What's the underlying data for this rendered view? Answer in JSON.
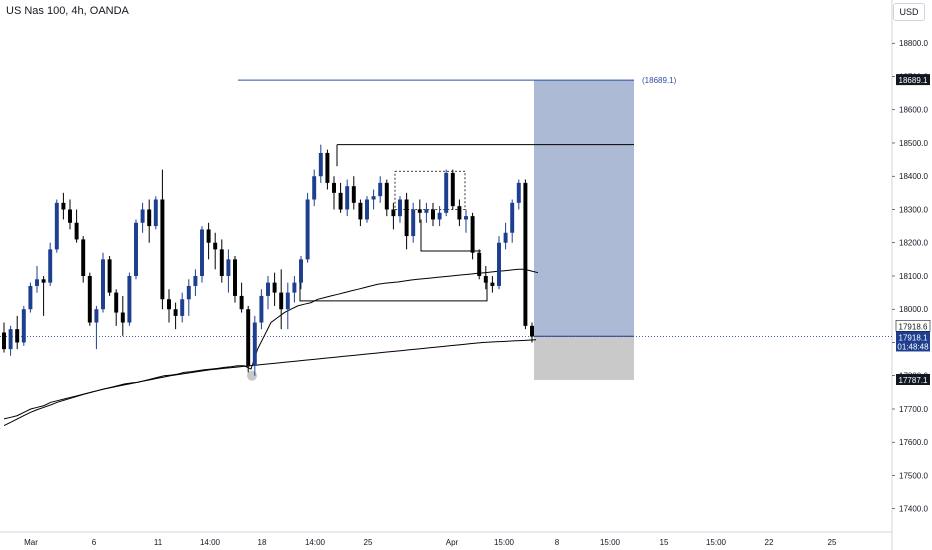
{
  "header": {
    "title": "US Nas 100, 4h, OANDA",
    "currency": "USD"
  },
  "colors": {
    "bull": "#1e3f8f",
    "bear": "#000000",
    "line": "#000000",
    "target_zone": "#a9b6d3",
    "stop_zone": "#c9c9c9",
    "target_line": "#2a4ea3",
    "axis_text": "#131722",
    "tag_bg": "#131722",
    "tag_text": "#ffffff"
  },
  "chart_data": {
    "type": "candlestick",
    "title": "US Nas 100, 4h, OANDA",
    "ylim": [
      17330,
      18930
    ],
    "y_ticks": [
      17400,
      17500,
      17600,
      17700,
      17800,
      17900,
      18000,
      18100,
      18200,
      18300,
      18400,
      18500,
      18600,
      18700,
      18800
    ],
    "y_tick_labels": [
      "17400.0",
      "17500.0",
      "17600.0",
      "17700.0",
      "17800.0",
      "17900.0",
      "18000.0",
      "18100.0",
      "18200.0",
      "18300.0",
      "18400.0",
      "18500.0",
      "18600.0",
      "18700.0",
      "18800.0"
    ],
    "x_labels": [
      "Mar",
      "6",
      "11",
      "14:00",
      "18",
      "14:00",
      "25",
      "Apr",
      "15:00",
      "8",
      "15:00",
      "15",
      "15:00",
      "22",
      "25"
    ],
    "candles": [
      [
        17930,
        17960,
        17870,
        17880
      ],
      [
        17880,
        17950,
        17860,
        17940
      ],
      [
        17940,
        17980,
        17880,
        17900
      ],
      [
        17900,
        18010,
        17890,
        18000
      ],
      [
        18000,
        18080,
        17990,
        18070
      ],
      [
        18070,
        18130,
        18050,
        18090
      ],
      [
        18090,
        18100,
        17980,
        18080
      ],
      [
        18080,
        18200,
        18070,
        18180
      ],
      [
        18180,
        18330,
        18170,
        18320
      ],
      [
        18320,
        18350,
        18270,
        18300
      ],
      [
        18300,
        18330,
        18240,
        18260
      ],
      [
        18260,
        18300,
        18200,
        18210
      ],
      [
        18210,
        18220,
        18080,
        18100
      ],
      [
        18100,
        18110,
        17950,
        17960
      ],
      [
        17960,
        18010,
        17880,
        18000
      ],
      [
        18000,
        18170,
        17990,
        18150
      ],
      [
        18150,
        18160,
        18040,
        18050
      ],
      [
        18050,
        18060,
        17950,
        17990
      ],
      [
        17990,
        18040,
        17920,
        17960
      ],
      [
        17960,
        18110,
        17950,
        18100
      ],
      [
        18100,
        18270,
        18090,
        18260
      ],
      [
        18260,
        18320,
        18230,
        18300
      ],
      [
        18300,
        18330,
        18200,
        18250
      ],
      [
        18250,
        18340,
        18240,
        18330
      ],
      [
        18330,
        18420,
        18000,
        18030
      ],
      [
        18030,
        18060,
        17960,
        18000
      ],
      [
        18000,
        18020,
        17940,
        17980
      ],
      [
        17980,
        18050,
        17960,
        18030
      ],
      [
        18030,
        18090,
        17980,
        18070
      ],
      [
        18070,
        18120,
        18040,
        18100
      ],
      [
        18100,
        18250,
        18080,
        18240
      ],
      [
        18240,
        18260,
        18150,
        18200
      ],
      [
        18200,
        18230,
        18120,
        18180
      ],
      [
        18180,
        18210,
        18080,
        18100
      ],
      [
        18100,
        18180,
        18050,
        18150
      ],
      [
        18150,
        18160,
        18020,
        18040
      ],
      [
        18040,
        18080,
        17990,
        18000
      ],
      [
        18000,
        18010,
        17810,
        17830
      ],
      [
        17830,
        17980,
        17800,
        17960
      ],
      [
        17960,
        18060,
        17940,
        18040
      ],
      [
        18040,
        18100,
        18000,
        18080
      ],
      [
        18080,
        18110,
        18010,
        18050
      ],
      [
        18050,
        18120,
        17940,
        18000
      ],
      [
        18000,
        18080,
        17940,
        18050
      ],
      [
        18050,
        18100,
        18020,
        18080
      ],
      [
        18080,
        18160,
        18060,
        18150
      ],
      [
        18150,
        18350,
        18140,
        18330
      ],
      [
        18330,
        18420,
        18310,
        18400
      ],
      [
        18400,
        18495,
        18380,
        18470
      ],
      [
        18470,
        18480,
        18360,
        18380
      ],
      [
        18380,
        18400,
        18300,
        18350
      ],
      [
        18350,
        18380,
        18290,
        18300
      ],
      [
        18300,
        18390,
        18280,
        18370
      ],
      [
        18370,
        18400,
        18300,
        18320
      ],
      [
        18320,
        18330,
        18250,
        18270
      ],
      [
        18270,
        18340,
        18260,
        18330
      ],
      [
        18330,
        18360,
        18300,
        18340
      ],
      [
        18340,
        18400,
        18320,
        18380
      ],
      [
        18380,
        18390,
        18280,
        18300
      ],
      [
        18300,
        18320,
        18240,
        18280
      ],
      [
        18280,
        18340,
        18260,
        18330
      ],
      [
        18330,
        18350,
        18180,
        18220
      ],
      [
        18220,
        18320,
        18200,
        18300
      ],
      [
        18300,
        18330,
        18260,
        18290
      ],
      [
        18290,
        18320,
        18260,
        18300
      ],
      [
        18300,
        18320,
        18250,
        18270
      ],
      [
        18270,
        18310,
        18250,
        18290
      ],
      [
        18290,
        18420,
        18280,
        18410
      ],
      [
        18410,
        18420,
        18300,
        18310
      ],
      [
        18310,
        18330,
        18250,
        18270
      ],
      [
        18270,
        18300,
        18230,
        18280
      ],
      [
        18280,
        18290,
        18150,
        18170
      ],
      [
        18170,
        18180,
        18090,
        18100
      ],
      [
        18100,
        18130,
        18060,
        18080
      ],
      [
        18080,
        18100,
        18050,
        18070
      ],
      [
        18070,
        18220,
        18060,
        18200
      ],
      [
        18200,
        18260,
        18180,
        18230
      ],
      [
        18230,
        18330,
        18200,
        18320
      ],
      [
        18320,
        18390,
        18300,
        18380
      ],
      [
        18380,
        18390,
        17940,
        17950
      ],
      [
        17950,
        17960,
        17900,
        17918
      ]
    ],
    "moving_average": [
      17670,
      17675,
      17680,
      17690,
      17700,
      17705,
      17710,
      17720,
      17725,
      17730,
      17735,
      17740,
      17745,
      17750,
      17755,
      17760,
      17765,
      17770,
      17775,
      17778,
      17780,
      17785,
      17790,
      17795,
      17800,
      17802,
      17805,
      17810,
      17812,
      17815,
      17818,
      17820,
      17822,
      17825,
      17827,
      17830,
      17830,
      17820,
      17880,
      17920,
      17960,
      17975,
      17990,
      18000,
      18010,
      18015,
      18020,
      18030,
      18035,
      18040,
      18045,
      18050,
      18055,
      18060,
      18065,
      18070,
      18075,
      18078,
      18080,
      18082,
      18085,
      18088,
      18090,
      18092,
      18094,
      18096,
      18098,
      18100,
      18102,
      18104,
      18106,
      18108,
      18110,
      18112,
      18114,
      18116,
      18118,
      18120,
      18120,
      18115,
      18110
    ],
    "long_average": [
      17650,
      17660,
      17670,
      17680,
      17690,
      17698,
      17705,
      17712,
      17720,
      17726,
      17732,
      17738,
      17744,
      17750,
      17755,
      17760,
      17764,
      17768,
      17772,
      17776,
      17780,
      17784,
      17788,
      17792,
      17796,
      17800,
      17803,
      17806,
      17809,
      17812,
      17815,
      17818,
      17820,
      17822,
      17824,
      17826,
      17828,
      17830,
      17832,
      17834,
      17836,
      17838,
      17840,
      17842,
      17844,
      17846,
      17848,
      17850,
      17852,
      17854,
      17856,
      17858,
      17860,
      17862,
      17864,
      17866,
      17868,
      17870,
      17872,
      17874,
      17876,
      17878,
      17880,
      17882,
      17884,
      17886,
      17888,
      17890,
      17892,
      17894,
      17896,
      17898,
      17900,
      17901,
      17902,
      17903,
      17904,
      17905,
      17906,
      17907,
      17908
    ],
    "levels": {
      "target": 18689.1,
      "target_label": "(18689.1)",
      "entry": 17918.6,
      "current": 17918.1,
      "stop": 17787.1,
      "resistance": 18495
    },
    "price_tags": [
      {
        "label": "18689.1",
        "value": 18689.1,
        "style": "dark"
      },
      {
        "label": "17918.6",
        "value": 17918.6,
        "style": "light"
      },
      {
        "label": "17918.1",
        "value": 17918.1,
        "style": "blue"
      },
      {
        "label": "01:48:48",
        "value": 17918.1,
        "style": "blue-sub"
      },
      {
        "label": "17787.1",
        "value": 17787.1,
        "style": "dark"
      }
    ],
    "grid": false
  }
}
